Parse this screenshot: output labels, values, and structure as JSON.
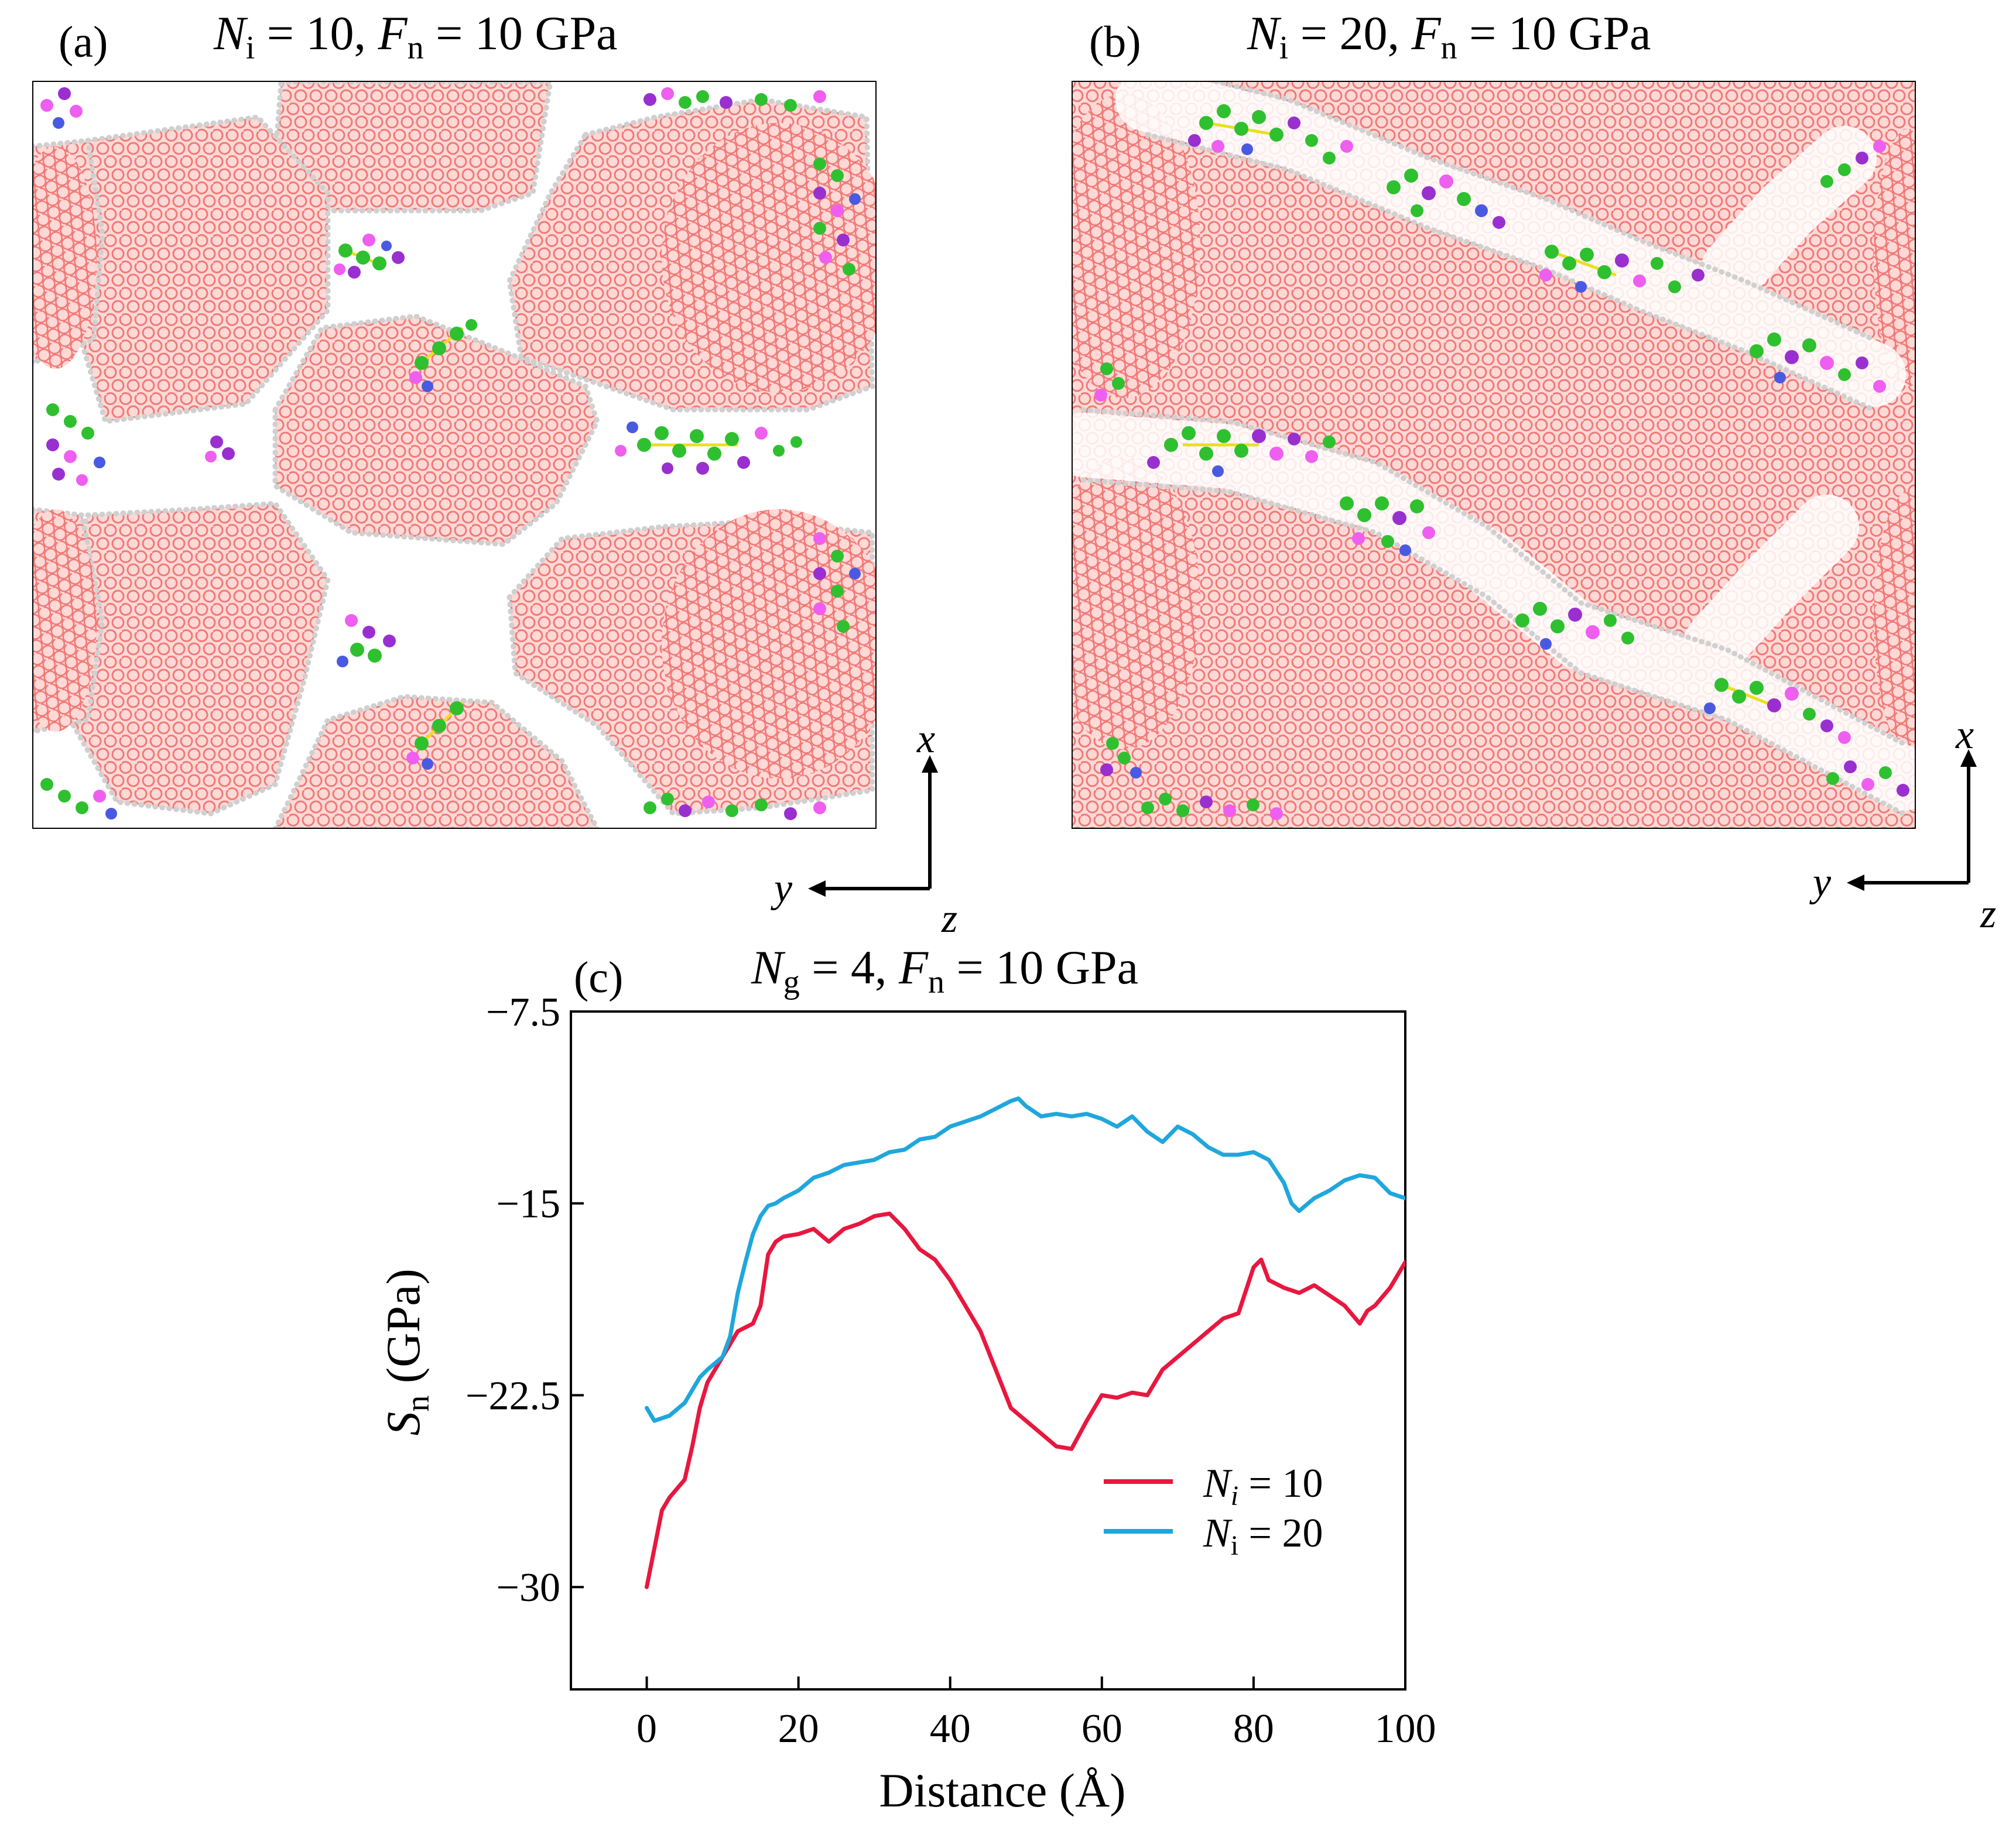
{
  "figure": {
    "panels": [
      {
        "label": "(a)",
        "title": {
          "n_sym": "N",
          "n_sub": "i",
          "n_val": " = 10, ",
          "f_sym": "F",
          "f_sub": "n",
          "f_val": " = 10 GPa"
        },
        "description": "Atomistic snapshot, N_i = 10",
        "axes": {
          "x": "x",
          "y": "y",
          "z": "z"
        }
      },
      {
        "label": "(b)",
        "title": {
          "n_sym": "N",
          "n_sub": "i",
          "n_val": " = 20, ",
          "f_sym": "F",
          "f_sub": "n",
          "f_val": " = 10 GPa"
        },
        "description": "Atomistic snapshot, N_i = 20",
        "axes": {
          "x": "x",
          "y": "y",
          "z": "z"
        }
      }
    ],
    "colors": {
      "grain": "#f07a78",
      "boundary_atom": "#cfcfcf",
      "green_atom": "#2fc02f",
      "magenta_atom": "#ee5ff0",
      "purple_atom": "#9a2fd0",
      "blue_atom": "#4a5ae0",
      "yellow_bond": "#e8e020",
      "series_ni10": "#e8173f",
      "series_ni20": "#1fa7dc"
    }
  },
  "chart_data": {
    "type": "line",
    "label": "(c)",
    "title": {
      "n_sym": "N",
      "n_sub": "g",
      "n_val": " = 4, ",
      "f_sym": "F",
      "f_sub": "n",
      "f_val": " = 10 GPa"
    },
    "xlabel": "Distance (Å)",
    "ylabel": {
      "sym": "S",
      "sub": "n",
      "unit": " (GPa)"
    },
    "xlim": [
      -10,
      100
    ],
    "ylim": [
      -34,
      -7.5
    ],
    "xticks": [
      0,
      20,
      40,
      60,
      80,
      100
    ],
    "xtick_labels": [
      "0",
      "20",
      "40",
      "60",
      "80",
      "100"
    ],
    "yticks": [
      -7.5,
      -15,
      -22.5,
      -30
    ],
    "ytick_labels": [
      "−7.5",
      "−15",
      "−22.5",
      "−30"
    ],
    "legend": "bottom-right",
    "series": [
      {
        "name": "N_i = 10",
        "legend_sym": "N",
        "legend_sub": "i",
        "legend_val": " = 10",
        "color": "#e8173f",
        "x": [
          0,
          1,
          2,
          3,
          5,
          6,
          7,
          8,
          10,
          12,
          14,
          15,
          16,
          17,
          18,
          20,
          22,
          24,
          26,
          28,
          30,
          32,
          34,
          36,
          38,
          40,
          42,
          44,
          46,
          48,
          50,
          52,
          54,
          56,
          58,
          60,
          62,
          64,
          66,
          68,
          70,
          72,
          74,
          76,
          78,
          80,
          81,
          82,
          84,
          86,
          88,
          90,
          92,
          94,
          95,
          96,
          98,
          100
        ],
        "y": [
          -30,
          -28.5,
          -27,
          -26.5,
          -25.8,
          -24.5,
          -23,
          -22,
          -21,
          -20,
          -19.7,
          -19,
          -17,
          -16.5,
          -16.3,
          -16.2,
          -16,
          -16.5,
          -16,
          -15.8,
          -15.5,
          -15.4,
          -16,
          -16.8,
          -17.2,
          -18,
          -19,
          -20,
          -21.5,
          -23,
          -23.5,
          -24,
          -24.5,
          -24.6,
          -23.5,
          -22.5,
          -22.6,
          -22.4,
          -22.5,
          -21.5,
          -21,
          -20.5,
          -20,
          -19.5,
          -19.3,
          -17.5,
          -17.2,
          -18,
          -18.3,
          -18.5,
          -18.2,
          -18.6,
          -19,
          -19.7,
          -19.2,
          -19,
          -18.3,
          -17.3
        ]
      },
      {
        "name": "N_i = 20",
        "legend_sym": "N",
        "legend_sub": "i",
        "legend_val": " = 20",
        "color": "#1fa7dc",
        "x": [
          0,
          1,
          2,
          3,
          5,
          7,
          8,
          10,
          11,
          12,
          13,
          14,
          15,
          16,
          17,
          18,
          20,
          22,
          24,
          26,
          28,
          30,
          32,
          34,
          36,
          38,
          40,
          42,
          44,
          46,
          48,
          49,
          50,
          52,
          54,
          56,
          58,
          60,
          62,
          64,
          66,
          68,
          70,
          72,
          74,
          76,
          78,
          80,
          82,
          84,
          85,
          86,
          88,
          90,
          92,
          94,
          96,
          98,
          100
        ],
        "y": [
          -23,
          -23.5,
          -23.4,
          -23.3,
          -22.8,
          -21.8,
          -21.5,
          -21,
          -20.2,
          -18.5,
          -17.3,
          -16.2,
          -15.5,
          -15.1,
          -15,
          -14.8,
          -14.5,
          -14,
          -13.8,
          -13.5,
          -13.4,
          -13.3,
          -13,
          -12.9,
          -12.5,
          -12.4,
          -12,
          -11.8,
          -11.6,
          -11.3,
          -11,
          -10.9,
          -11.2,
          -11.6,
          -11.5,
          -11.6,
          -11.5,
          -11.7,
          -12,
          -11.6,
          -12.2,
          -12.6,
          -12,
          -12.3,
          -12.8,
          -13.1,
          -13.1,
          -13,
          -13.3,
          -14.2,
          -15,
          -15.3,
          -14.8,
          -14.5,
          -14.1,
          -13.9,
          -14,
          -14.6,
          -14.8
        ]
      }
    ]
  }
}
